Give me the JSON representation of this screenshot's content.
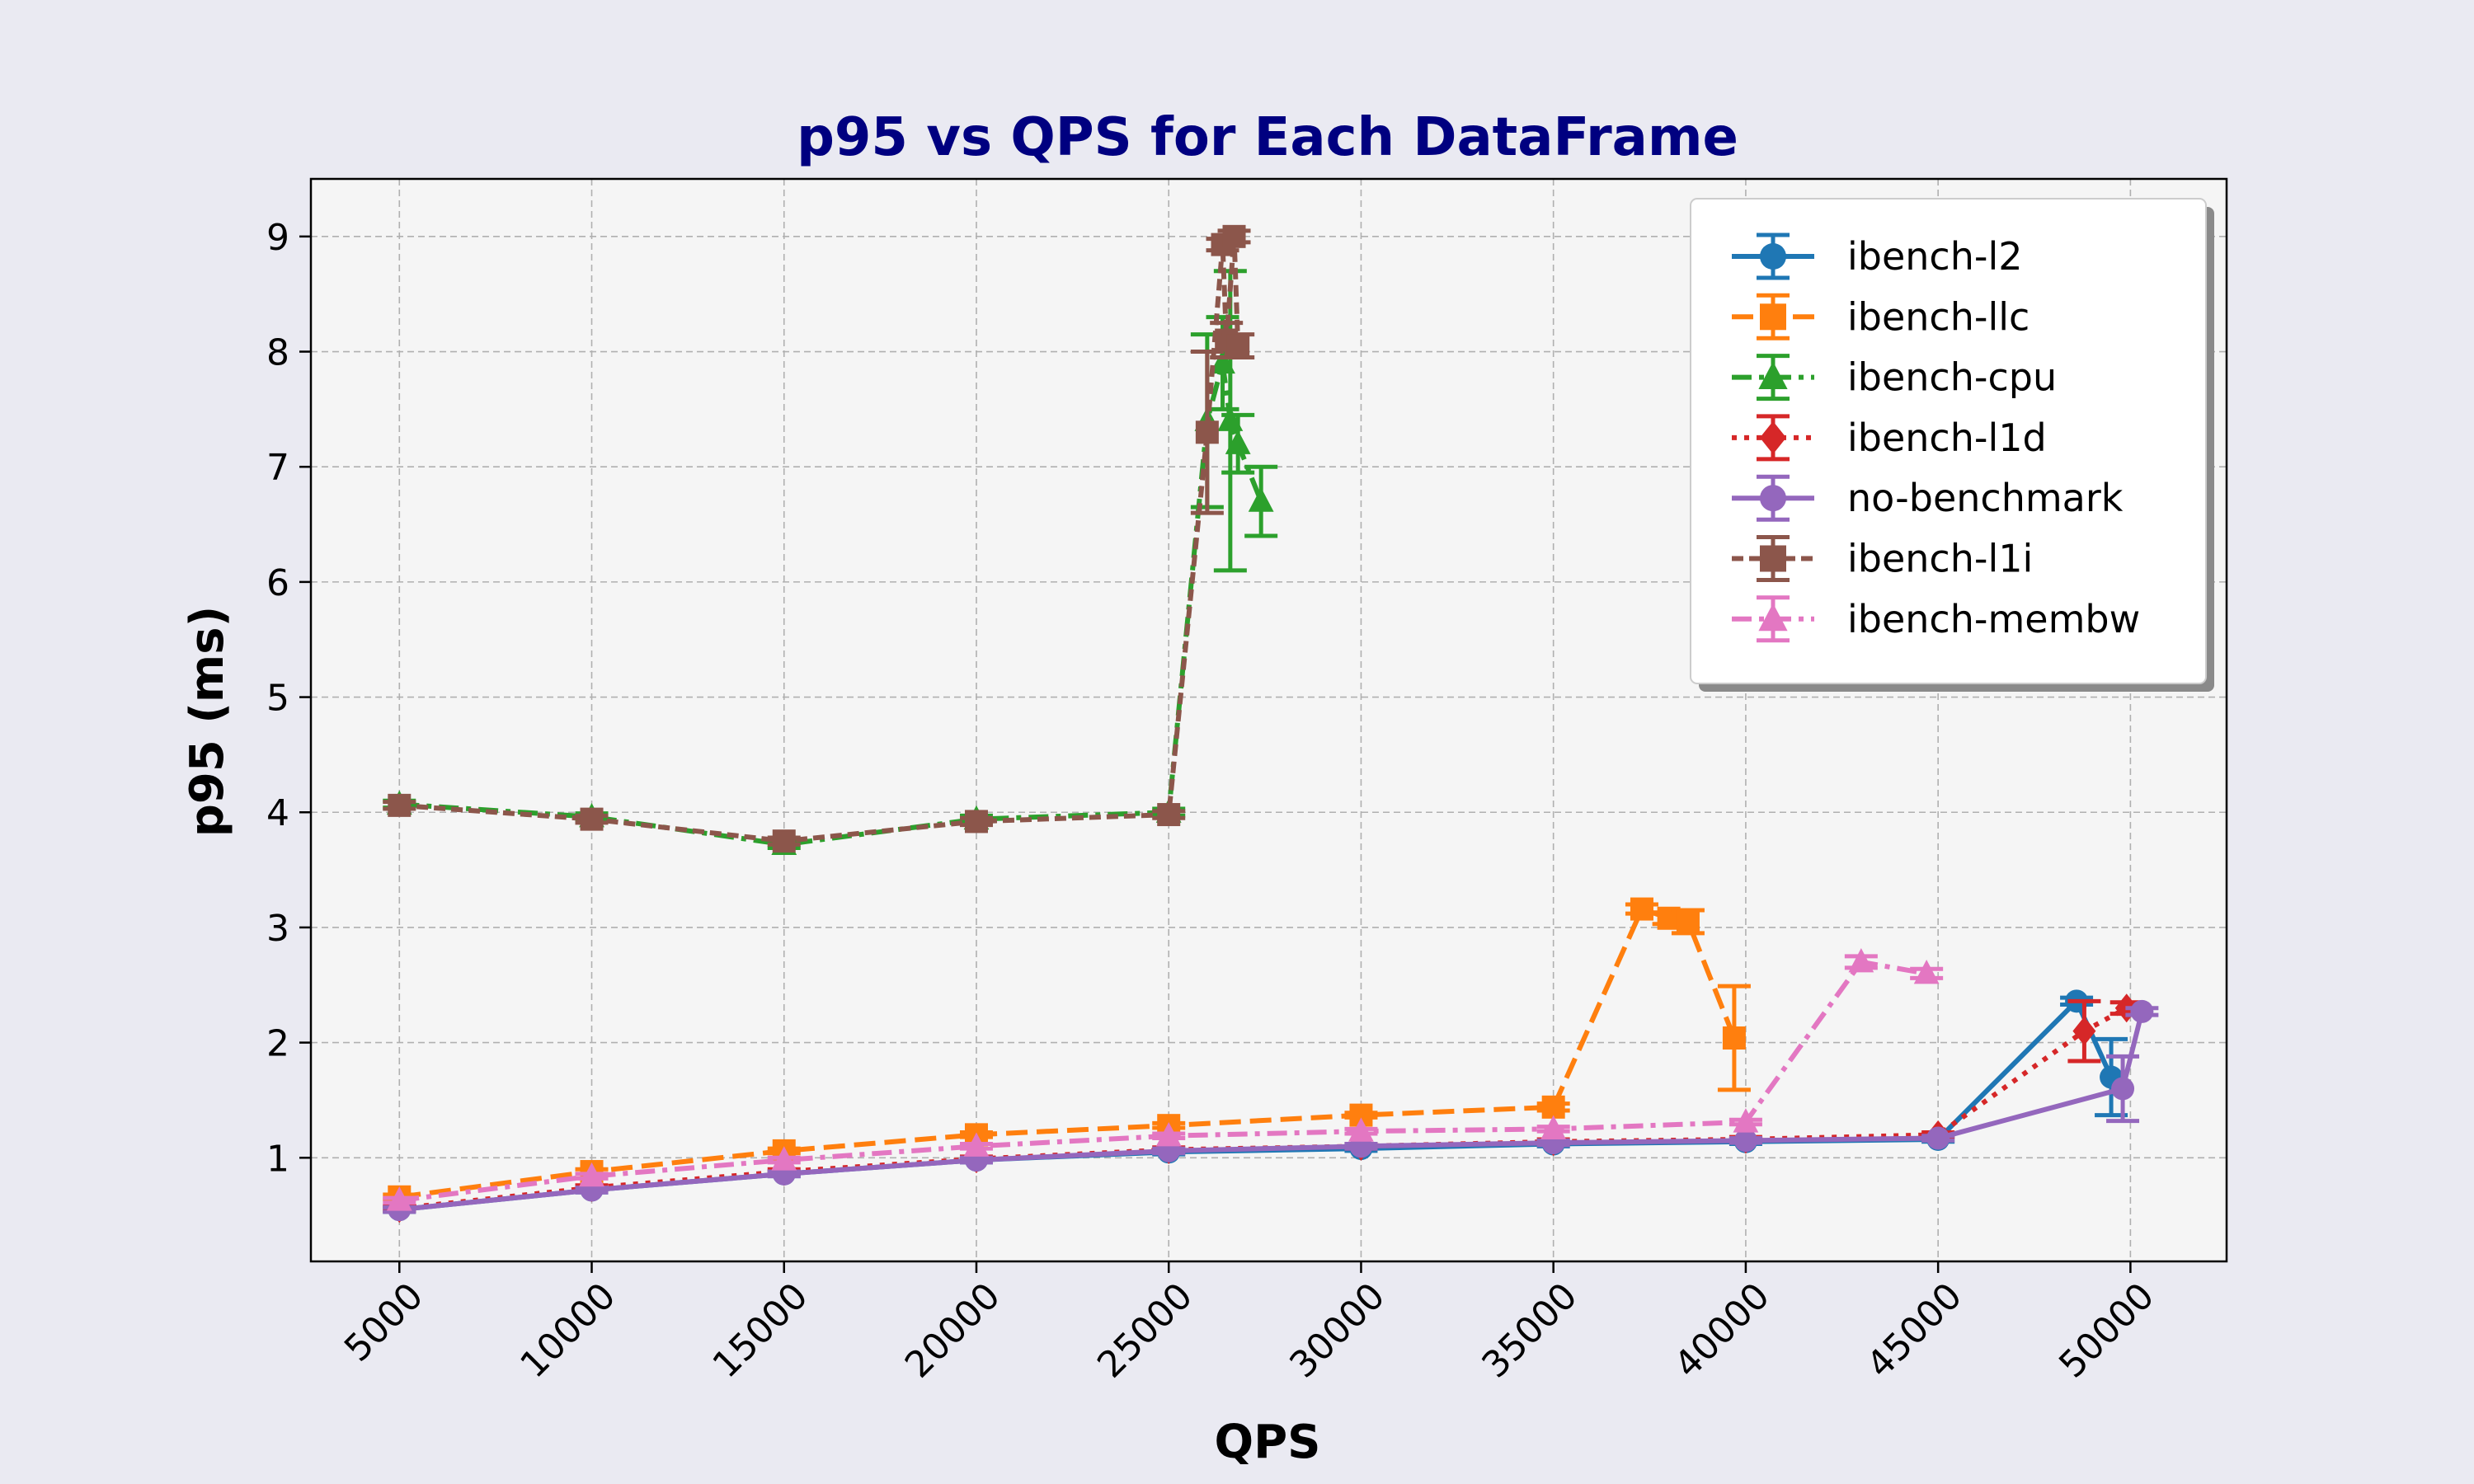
{
  "chart_data": {
    "type": "line",
    "title": "p95 vs QPS for Each DataFrame",
    "xlabel": "QPS",
    "ylabel": "p95 (ms)",
    "xlim": [
      2700,
      52500
    ],
    "ylim": [
      0.1,
      9.5
    ],
    "xticks": [
      5000,
      10000,
      15000,
      20000,
      25000,
      30000,
      35000,
      40000,
      45000,
      50000
    ],
    "yticks": [
      1,
      2,
      3,
      4,
      5,
      6,
      7,
      8,
      9
    ],
    "grid": true,
    "legend_position": "top-right",
    "series": [
      {
        "name": "ibench-l2",
        "color": "#1f77b4",
        "marker": "circle",
        "dash": "solid",
        "points": [
          {
            "x": 5000,
            "y": 0.55,
            "err": 0.02
          },
          {
            "x": 10000,
            "y": 0.72,
            "err": 0.02
          },
          {
            "x": 15000,
            "y": 0.86,
            "err": 0.02
          },
          {
            "x": 20000,
            "y": 0.98,
            "err": 0.02
          },
          {
            "x": 25000,
            "y": 1.05,
            "err": 0.02
          },
          {
            "x": 30000,
            "y": 1.08,
            "err": 0.02
          },
          {
            "x": 35000,
            "y": 1.12,
            "err": 0.02
          },
          {
            "x": 40000,
            "y": 1.14,
            "err": 0.02
          },
          {
            "x": 45000,
            "y": 1.16,
            "err": 0.02
          },
          {
            "x": 48600,
            "y": 2.36,
            "err": 0.03
          },
          {
            "x": 49500,
            "y": 1.7,
            "err": 0.33
          }
        ]
      },
      {
        "name": "ibench-llc",
        "color": "#ff7f0e",
        "marker": "square",
        "dash": "dashed",
        "points": [
          {
            "x": 5000,
            "y": 0.66,
            "err": 0.02
          },
          {
            "x": 10000,
            "y": 0.88,
            "err": 0.02
          },
          {
            "x": 15000,
            "y": 1.06,
            "err": 0.02
          },
          {
            "x": 20000,
            "y": 1.2,
            "err": 0.02
          },
          {
            "x": 25000,
            "y": 1.28,
            "err": 0.02
          },
          {
            "x": 30000,
            "y": 1.37,
            "err": 0.02
          },
          {
            "x": 35000,
            "y": 1.44,
            "err": 0.03
          },
          {
            "x": 37300,
            "y": 3.16,
            "err": 0.04
          },
          {
            "x": 38000,
            "y": 3.08,
            "err": 0.05
          },
          {
            "x": 38500,
            "y": 3.05,
            "err": 0.1
          },
          {
            "x": 39700,
            "y": 2.04,
            "err": 0.45
          }
        ]
      },
      {
        "name": "ibench-cpu",
        "color": "#2ca02c",
        "marker": "triangle",
        "dash": "dashdot",
        "points": [
          {
            "x": 5000,
            "y": 4.07,
            "err": 0.03
          },
          {
            "x": 10000,
            "y": 3.96,
            "err": 0.03
          },
          {
            "x": 15000,
            "y": 3.72,
            "err": 0.03
          },
          {
            "x": 20000,
            "y": 3.94,
            "err": 0.03
          },
          {
            "x": 25000,
            "y": 4.0,
            "err": 0.03
          },
          {
            "x": 26000,
            "y": 7.4,
            "err": 0.75
          },
          {
            "x": 26400,
            "y": 7.9,
            "err": 0.4
          },
          {
            "x": 26600,
            "y": 7.4,
            "err": 1.3
          },
          {
            "x": 26800,
            "y": 7.2,
            "err": 0.25
          },
          {
            "x": 27400,
            "y": 6.7,
            "err": 0.3
          }
        ]
      },
      {
        "name": "ibench-l1d",
        "color": "#d62728",
        "marker": "diamond",
        "dash": "dotted",
        "points": [
          {
            "x": 5000,
            "y": 0.56,
            "err": 0.02
          },
          {
            "x": 10000,
            "y": 0.74,
            "err": 0.02
          },
          {
            "x": 15000,
            "y": 0.88,
            "err": 0.02
          },
          {
            "x": 20000,
            "y": 0.99,
            "err": 0.02
          },
          {
            "x": 25000,
            "y": 1.07,
            "err": 0.02
          },
          {
            "x": 30000,
            "y": 1.1,
            "err": 0.02
          },
          {
            "x": 35000,
            "y": 1.14,
            "err": 0.02
          },
          {
            "x": 40000,
            "y": 1.16,
            "err": 0.02
          },
          {
            "x": 45000,
            "y": 1.2,
            "err": 0.02
          },
          {
            "x": 48800,
            "y": 2.1,
            "err": 0.26
          },
          {
            "x": 49900,
            "y": 2.3,
            "err": 0.05
          }
        ]
      },
      {
        "name": "no-benchmark",
        "color": "#9467bd",
        "marker": "circle",
        "dash": "solid",
        "points": [
          {
            "x": 5000,
            "y": 0.55,
            "err": 0.02
          },
          {
            "x": 10000,
            "y": 0.72,
            "err": 0.02
          },
          {
            "x": 15000,
            "y": 0.86,
            "err": 0.02
          },
          {
            "x": 20000,
            "y": 0.98,
            "err": 0.02
          },
          {
            "x": 25000,
            "y": 1.06,
            "err": 0.02
          },
          {
            "x": 30000,
            "y": 1.1,
            "err": 0.02
          },
          {
            "x": 35000,
            "y": 1.13,
            "err": 0.02
          },
          {
            "x": 40000,
            "y": 1.15,
            "err": 0.02
          },
          {
            "x": 45000,
            "y": 1.17,
            "err": 0.02
          },
          {
            "x": 49800,
            "y": 1.6,
            "err": 0.28
          },
          {
            "x": 50300,
            "y": 2.27,
            "err": 0.03
          }
        ]
      },
      {
        "name": "ibench-l1i",
        "color": "#8c564b",
        "marker": "square",
        "dash": "densedash",
        "points": [
          {
            "x": 5000,
            "y": 4.06,
            "err": 0.03
          },
          {
            "x": 10000,
            "y": 3.94,
            "err": 0.03
          },
          {
            "x": 15000,
            "y": 3.75,
            "err": 0.03
          },
          {
            "x": 20000,
            "y": 3.92,
            "err": 0.03
          },
          {
            "x": 25000,
            "y": 3.98,
            "err": 0.03
          },
          {
            "x": 26000,
            "y": 7.3,
            "err": 0.7
          },
          {
            "x": 26400,
            "y": 8.93,
            "err": 0.05
          },
          {
            "x": 26500,
            "y": 8.1,
            "err": 0.15
          },
          {
            "x": 26700,
            "y": 9.0,
            "err": 0.05
          },
          {
            "x": 26800,
            "y": 8.05,
            "err": 0.1
          }
        ]
      },
      {
        "name": "ibench-membw",
        "color": "#e377c2",
        "marker": "triangle",
        "dash": "dashdot",
        "points": [
          {
            "x": 5000,
            "y": 0.63,
            "err": 0.02
          },
          {
            "x": 10000,
            "y": 0.84,
            "err": 0.02
          },
          {
            "x": 15000,
            "y": 0.98,
            "err": 0.02
          },
          {
            "x": 20000,
            "y": 1.1,
            "err": 0.02
          },
          {
            "x": 25000,
            "y": 1.19,
            "err": 0.02
          },
          {
            "x": 30000,
            "y": 1.23,
            "err": 0.02
          },
          {
            "x": 35000,
            "y": 1.25,
            "err": 0.02
          },
          {
            "x": 40000,
            "y": 1.31,
            "err": 0.02
          },
          {
            "x": 43000,
            "y": 2.7,
            "err": 0.05
          },
          {
            "x": 44700,
            "y": 2.6,
            "err": 0.04
          }
        ]
      }
    ]
  }
}
